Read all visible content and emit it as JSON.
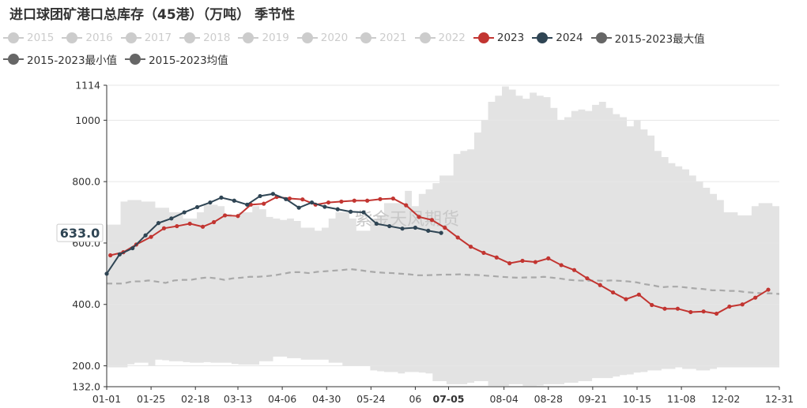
{
  "title": "进口球团矿港口总库存（45港）（万吨） 季节性",
  "legend": [
    {
      "label": "2015",
      "color": "#cccccc",
      "active": false
    },
    {
      "label": "2016",
      "color": "#cccccc",
      "active": false
    },
    {
      "label": "2017",
      "color": "#cccccc",
      "active": false
    },
    {
      "label": "2018",
      "color": "#cccccc",
      "active": false
    },
    {
      "label": "2019",
      "color": "#cccccc",
      "active": false
    },
    {
      "label": "2020",
      "color": "#cccccc",
      "active": false
    },
    {
      "label": "2021",
      "color": "#cccccc",
      "active": false
    },
    {
      "label": "2022",
      "color": "#cccccc",
      "active": false
    },
    {
      "label": "2023",
      "color": "#c23531",
      "active": true
    },
    {
      "label": "2024",
      "color": "#2f4554",
      "active": true
    },
    {
      "label": "2015-2023最大值",
      "color": "#666666",
      "active": true
    },
    {
      "label": "2015-2023最小值",
      "color": "#666666",
      "active": true
    },
    {
      "label": "2015-2023均值",
      "color": "#666666",
      "active": true
    }
  ],
  "watermark": "紫金天风期货",
  "pointer_label": "633.0",
  "highlight_tick": "07-05",
  "chart_data": {
    "type": "line",
    "x_ticks": [
      "01-01",
      "01-25",
      "02-18",
      "03-13",
      "04-06",
      "04-30",
      "05-24",
      "06",
      "07-05",
      "08-04",
      "08-28",
      "09-21",
      "10-15",
      "11-08",
      "12-02",
      "12-31"
    ],
    "y_ticks": [
      "1114",
      "1000",
      "800.0",
      "600.0",
      "400.0",
      "200.0",
      "132.0"
    ],
    "ylim": [
      132,
      1114
    ],
    "grid": true,
    "series": [
      {
        "name": "2023",
        "color": "#c23531",
        "x": [
          "01-03",
          "01-10",
          "01-17",
          "01-25",
          "02-01",
          "02-08",
          "02-15",
          "02-22",
          "02-28",
          "03-06",
          "03-13",
          "03-20",
          "03-27",
          "04-03",
          "04-10",
          "04-17",
          "04-24",
          "05-01",
          "05-08",
          "05-15",
          "05-22",
          "05-29",
          "06-05",
          "06-12",
          "06-19",
          "06-26",
          "07-03",
          "07-10",
          "07-17",
          "07-24",
          "07-31",
          "08-07",
          "08-14",
          "08-21",
          "08-28",
          "09-04",
          "09-11",
          "09-18",
          "09-25",
          "10-02",
          "10-09",
          "10-16",
          "10-23",
          "10-30",
          "11-06",
          "11-13",
          "11-20",
          "11-27",
          "12-04",
          "12-11",
          "12-18",
          "12-25"
        ],
        "values": [
          560,
          570,
          595,
          620,
          648,
          655,
          663,
          653,
          668,
          690,
          688,
          725,
          728,
          750,
          745,
          742,
          725,
          732,
          735,
          738,
          738,
          743,
          745,
          723,
          685,
          675,
          650,
          618,
          588,
          568,
          553,
          534,
          542,
          538,
          550,
          528,
          512,
          485,
          463,
          439,
          417,
          432,
          398,
          386,
          386,
          375,
          377,
          370,
          393,
          400,
          422,
          448
        ]
      },
      {
        "name": "2024",
        "color": "#2f4554",
        "x": [
          "01-01",
          "01-08",
          "01-15",
          "01-22",
          "01-29",
          "02-05",
          "02-12",
          "02-19",
          "02-26",
          "03-04",
          "03-11",
          "03-18",
          "03-25",
          "04-01",
          "04-08",
          "04-15",
          "04-22",
          "04-29",
          "05-06",
          "05-13",
          "05-20",
          "05-27",
          "06-03",
          "06-10",
          "06-17",
          "06-24",
          "07-01"
        ],
        "values": [
          500,
          563,
          583,
          625,
          665,
          680,
          700,
          717,
          732,
          748,
          738,
          725,
          753,
          760,
          743,
          715,
          732,
          718,
          710,
          702,
          700,
          663,
          655,
          647,
          650,
          640,
          633
        ]
      }
    ]
  }
}
